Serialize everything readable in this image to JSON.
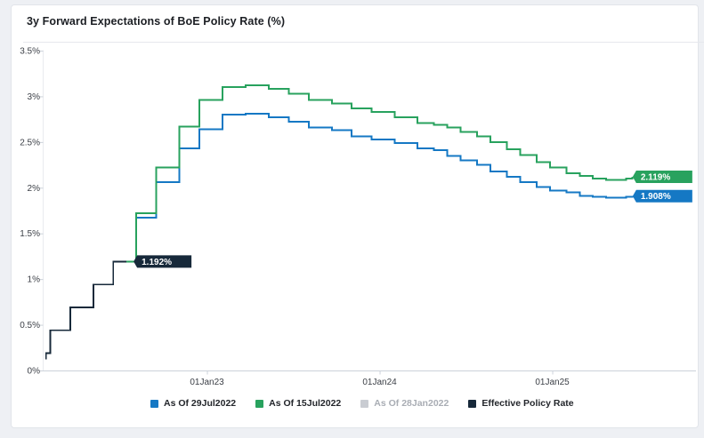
{
  "page": {
    "title": "3y Forward Expectations of BoE Policy Rate (%)"
  },
  "colors": {
    "page_bg": "#eef0f4",
    "card_bg": "#ffffff",
    "card_border": "#e2e5ea",
    "divider": "#e6e8ed",
    "title_text": "#1c1f24",
    "axis_text": "#3b3f46",
    "tick": "#ccd2da",
    "axis_line": "#e9ebef",
    "blue": "#1578c4",
    "green": "#28a25e",
    "gray": "#c9ccd2",
    "gray_text": "#a9adb4",
    "navy": "#17293a",
    "tag_text": "#ffffff"
  },
  "chart_data": {
    "type": "line",
    "subtype": "step-after",
    "title": "3y Forward Expectations of BoE Policy Rate (%)",
    "grid": false,
    "legend_position": "bottom",
    "y_axis": {
      "unit": "%",
      "range": [
        0,
        3.5
      ],
      "ticks": [
        {
          "label": "0%",
          "value": 0
        },
        {
          "label": "0.5%",
          "value": 0.5
        },
        {
          "label": "1%",
          "value": 1
        },
        {
          "label": "1.5%",
          "value": 1.5
        },
        {
          "label": "2%",
          "value": 2
        },
        {
          "label": "2.5%",
          "value": 2.5
        },
        {
          "label": "3%",
          "value": 3
        },
        {
          "label": "3.5%",
          "value": 3.5
        }
      ]
    },
    "x_axis": {
      "range_dates": [
        "2022-01-22",
        "2025-10-10"
      ],
      "ticks": [
        {
          "label": "01Jan23",
          "date": "2023-01-01"
        },
        {
          "label": "01Jan24",
          "date": "2024-01-01"
        },
        {
          "label": "01Jan25",
          "date": "2025-01-01"
        }
      ]
    },
    "series": [
      {
        "name": "As Of 29Jul2022",
        "color": "#1578c4",
        "visible": true,
        "disabled": false,
        "z": 2,
        "end_label": "1.908%",
        "points": [
          [
            "2022-07-29",
            1.19
          ],
          [
            "2022-08-04",
            1.67
          ],
          [
            "2022-09-16",
            2.06
          ],
          [
            "2022-11-04",
            2.43
          ],
          [
            "2022-12-16",
            2.64
          ],
          [
            "2023-02-03",
            2.8
          ],
          [
            "2023-03-24",
            2.81
          ],
          [
            "2023-05-12",
            2.77
          ],
          [
            "2023-06-23",
            2.72
          ],
          [
            "2023-08-04",
            2.66
          ],
          [
            "2023-09-22",
            2.63
          ],
          [
            "2023-11-03",
            2.56
          ],
          [
            "2023-12-15",
            2.53
          ],
          [
            "2024-02-02",
            2.49
          ],
          [
            "2024-03-22",
            2.43
          ],
          [
            "2024-04-26",
            2.41
          ],
          [
            "2024-05-24",
            2.35
          ],
          [
            "2024-06-21",
            2.3
          ],
          [
            "2024-07-26",
            2.25
          ],
          [
            "2024-08-23",
            2.18
          ],
          [
            "2024-09-27",
            2.12
          ],
          [
            "2024-10-25",
            2.06
          ],
          [
            "2024-11-29",
            2.01
          ],
          [
            "2024-12-27",
            1.97
          ],
          [
            "2025-01-31",
            1.95
          ],
          [
            "2025-02-28",
            1.91
          ],
          [
            "2025-03-28",
            1.9
          ],
          [
            "2025-04-25",
            1.89
          ],
          [
            "2025-06-06",
            1.9
          ],
          [
            "2025-06-19",
            1.908
          ]
        ]
      },
      {
        "name": "As Of 15Jul2022",
        "color": "#28a25e",
        "visible": true,
        "disabled": false,
        "z": 3,
        "end_label": "2.119%",
        "points": [
          [
            "2022-07-15",
            1.19
          ],
          [
            "2022-08-04",
            1.72
          ],
          [
            "2022-09-16",
            2.22
          ],
          [
            "2022-11-04",
            2.67
          ],
          [
            "2022-12-16",
            2.96
          ],
          [
            "2023-02-03",
            3.1
          ],
          [
            "2023-03-24",
            3.12
          ],
          [
            "2023-05-12",
            3.08
          ],
          [
            "2023-06-23",
            3.03
          ],
          [
            "2023-08-04",
            2.96
          ],
          [
            "2023-09-22",
            2.92
          ],
          [
            "2023-11-03",
            2.87
          ],
          [
            "2023-12-15",
            2.83
          ],
          [
            "2024-02-02",
            2.77
          ],
          [
            "2024-03-22",
            2.71
          ],
          [
            "2024-04-26",
            2.69
          ],
          [
            "2024-05-24",
            2.66
          ],
          [
            "2024-06-21",
            2.61
          ],
          [
            "2024-07-26",
            2.56
          ],
          [
            "2024-08-23",
            2.5
          ],
          [
            "2024-09-27",
            2.42
          ],
          [
            "2024-10-25",
            2.36
          ],
          [
            "2024-11-29",
            2.28
          ],
          [
            "2024-12-27",
            2.22
          ],
          [
            "2025-01-31",
            2.16
          ],
          [
            "2025-02-28",
            2.13
          ],
          [
            "2025-03-28",
            2.1
          ],
          [
            "2025-04-25",
            2.085
          ],
          [
            "2025-06-06",
            2.1
          ],
          [
            "2025-06-19",
            2.119
          ]
        ]
      },
      {
        "name": "As Of 28Jan2022",
        "color": "#c9ccd2",
        "visible": false,
        "disabled": true,
        "z": 0,
        "end_label": null,
        "points": []
      },
      {
        "name": "Effective Policy Rate",
        "color": "#17293a",
        "visible": true,
        "disabled": false,
        "z": 1,
        "end_label": "1.192%",
        "points": [
          [
            "2022-01-24",
            0.13
          ],
          [
            "2022-01-26",
            0.19
          ],
          [
            "2022-02-04",
            0.44
          ],
          [
            "2022-03-18",
            0.69
          ],
          [
            "2022-05-06",
            0.94
          ],
          [
            "2022-06-17",
            1.19
          ],
          [
            "2022-07-29",
            1.192
          ]
        ]
      }
    ]
  }
}
